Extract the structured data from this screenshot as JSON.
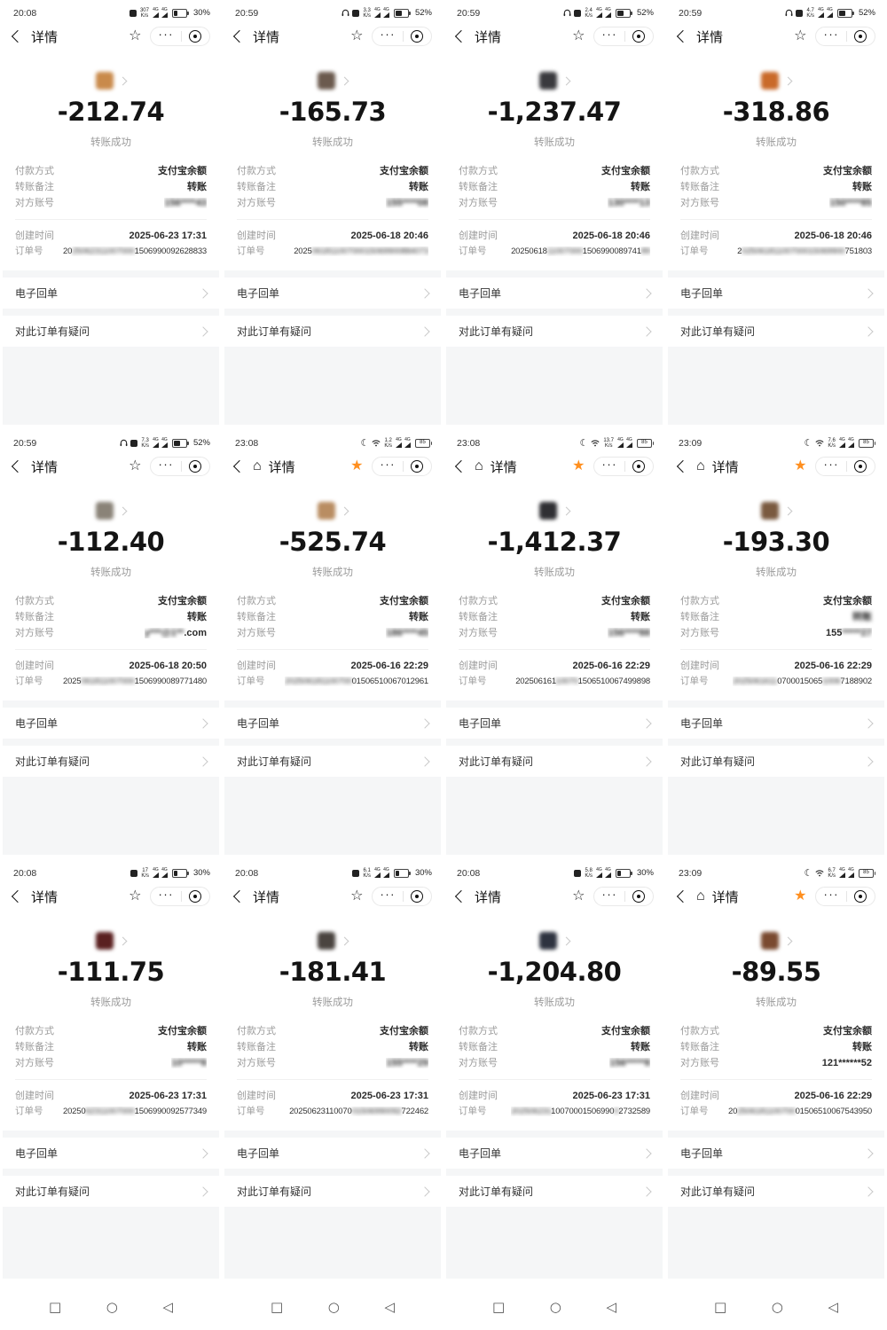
{
  "ui": {
    "nav_title": "详情",
    "status_success": "转账成功",
    "labels": {
      "payment": "付款方式",
      "note": "转账备注",
      "account": "对方账号",
      "created": "创建时间",
      "order": "订单号"
    },
    "values": {
      "payment": "支付宝余额",
      "note": "转账"
    },
    "receipt_label": "电子回单",
    "question_label": "对此订单有疑问",
    "speed_unit": "K/s",
    "signal_tag": "4G",
    "colors": {
      "star_filled": "#ff8f1f",
      "section_gray": "#f5f6f7"
    }
  },
  "cells": [
    {
      "time": "20:08",
      "speed": "307",
      "battery": "30%",
      "battery_pct": 30,
      "battery_boxed": false,
      "moon": false,
      "headphone": false,
      "mute": true,
      "wifi": false,
      "star_filled": false,
      "home": false,
      "android_nav": false,
      "avatar_color": "#c98a4b",
      "amount": "-212.74",
      "created": "2025-06-23 17:31",
      "note_blur": false,
      "account_parts": [
        [
          "156****43",
          1
        ]
      ],
      "order_parts": [
        [
          "20",
          0
        ],
        [
          "25062311007000",
          1
        ],
        [
          "1506990092628833",
          0
        ]
      ]
    },
    {
      "time": "20:59",
      "speed": "3.3",
      "battery": "52%",
      "battery_pct": 52,
      "battery_boxed": false,
      "moon": false,
      "headphone": true,
      "mute": true,
      "wifi": false,
      "star_filled": false,
      "home": false,
      "android_nav": false,
      "avatar_color": "#6b5a4e",
      "amount": "-165.73",
      "created": "2025-06-18 20:46",
      "note_blur": false,
      "account_parts": [
        [
          "155****08",
          1
        ]
      ],
      "order_parts": [
        [
          "2025",
          0
        ],
        [
          "06181100700015069900884073",
          1
        ]
      ]
    },
    {
      "time": "20:59",
      "speed": "2.4",
      "battery": "52%",
      "battery_pct": 52,
      "battery_boxed": false,
      "moon": false,
      "headphone": true,
      "mute": true,
      "wifi": false,
      "star_filled": false,
      "home": false,
      "android_nav": false,
      "avatar_color": "#3a3a3e",
      "amount": "-1,237.47",
      "created": "2025-06-18 20:46",
      "note_blur": false,
      "account_parts": [
        [
          "130****13",
          1
        ]
      ],
      "order_parts": [
        [
          "20250618",
          0
        ],
        [
          "11007000",
          1
        ],
        [
          "1506990089741",
          0
        ],
        [
          "89",
          1
        ]
      ]
    },
    {
      "time": "20:59",
      "speed": "4.7",
      "battery": "52%",
      "battery_pct": 52,
      "battery_boxed": false,
      "moon": false,
      "headphone": true,
      "mute": true,
      "wifi": false,
      "star_filled": false,
      "home": false,
      "android_nav": false,
      "avatar_color": "#c96a2a",
      "amount": "-318.86",
      "created": "2025-06-18 20:46",
      "note_blur": false,
      "account_parts": [
        [
          "150****85",
          1
        ]
      ],
      "order_parts": [
        [
          "2",
          0
        ],
        [
          "02506181100700015069900",
          1
        ],
        [
          "751803",
          0
        ]
      ]
    },
    {
      "time": "20:59",
      "speed": "7.3",
      "battery": "52%",
      "battery_pct": 52,
      "battery_boxed": false,
      "moon": false,
      "headphone": true,
      "mute": true,
      "wifi": false,
      "star_filled": false,
      "home": false,
      "android_nav": false,
      "avatar_color": "#8a8378",
      "amount": "-112.40",
      "created": "2025-06-18 20:50",
      "note_blur": false,
      "account_parts": [
        [
          "y***@1**",
          1
        ],
        [
          ".com",
          0
        ]
      ],
      "order_parts": [
        [
          "2025",
          0
        ],
        [
          "061811007000",
          1
        ],
        [
          "1506990089771480",
          0
        ]
      ]
    },
    {
      "time": "23:08",
      "speed": "1.2",
      "battery": "85",
      "battery_pct": 85,
      "battery_boxed": true,
      "moon": true,
      "headphone": false,
      "mute": false,
      "wifi": true,
      "star_filled": true,
      "home": true,
      "android_nav": false,
      "avatar_color": "#b98d62",
      "amount": "-525.74",
      "created": "2025-06-16 22:29",
      "note_blur": false,
      "account_parts": [
        [
          "186****45",
          1
        ]
      ],
      "order_parts": [
        [
          "202506181100700",
          1
        ],
        [
          "01506510067012961",
          0
        ]
      ]
    },
    {
      "time": "23:08",
      "speed": "13.7",
      "battery": "85",
      "battery_pct": 85,
      "battery_boxed": true,
      "moon": true,
      "headphone": false,
      "mute": false,
      "wifi": true,
      "star_filled": true,
      "home": true,
      "android_nav": false,
      "avatar_color": "#2f2f33",
      "amount": "-1,412.37",
      "created": "2025-06-16 22:29",
      "note_blur": false,
      "account_parts": [
        [
          "156****88",
          1
        ]
      ],
      "order_parts": [
        [
          "202506161",
          0
        ],
        [
          "10070",
          1
        ],
        [
          "1506510067499898",
          0
        ]
      ]
    },
    {
      "time": "23:09",
      "speed": "7.6",
      "battery": "85",
      "battery_pct": 85,
      "battery_boxed": true,
      "moon": true,
      "headphone": false,
      "mute": false,
      "wifi": true,
      "star_filled": true,
      "home": true,
      "android_nav": false,
      "avatar_color": "#7a5a40",
      "amount": "-193.30",
      "created": "2025-06-16 22:29",
      "note_blur": true,
      "account_parts": [
        [
          "155",
          0
        ],
        [
          "*****27",
          1
        ]
      ],
      "order_parts": [
        [
          "2025061611",
          1
        ],
        [
          "0700015065",
          0
        ],
        [
          "1006",
          1
        ],
        [
          "7188902",
          0
        ]
      ]
    },
    {
      "time": "20:08",
      "speed": "17",
      "battery": "30%",
      "battery_pct": 30,
      "battery_boxed": false,
      "moon": false,
      "headphone": false,
      "mute": true,
      "wifi": false,
      "star_filled": false,
      "home": false,
      "android_nav": true,
      "avatar_color": "#5a2020",
      "amount": "-111.75",
      "created": "2025-06-23 17:31",
      "note_blur": false,
      "account_parts": [
        [
          "10*****8",
          1
        ]
      ],
      "order_parts": [
        [
          "20250",
          0
        ],
        [
          "62311007000",
          1
        ],
        [
          "1506990092577349",
          0
        ]
      ]
    },
    {
      "time": "20:08",
      "speed": "6.1",
      "battery": "30%",
      "battery_pct": 30,
      "battery_boxed": false,
      "moon": false,
      "headphone": false,
      "mute": true,
      "wifi": false,
      "star_filled": false,
      "home": false,
      "android_nav": true,
      "avatar_color": "#4a4440",
      "amount": "-181.41",
      "created": "2025-06-23 17:31",
      "note_blur": false,
      "account_parts": [
        [
          "155****29",
          1
        ]
      ],
      "order_parts": [
        [
          "20250623110070",
          0
        ],
        [
          "01506990092",
          1
        ],
        [
          "722462",
          0
        ]
      ]
    },
    {
      "time": "20:08",
      "speed": "5.8",
      "battery": "30%",
      "battery_pct": 30,
      "battery_boxed": false,
      "moon": false,
      "headphone": false,
      "mute": true,
      "wifi": false,
      "star_filled": false,
      "home": false,
      "android_nav": true,
      "avatar_color": "#2e3340",
      "amount": "-1,204.80",
      "created": "2025-06-23 17:31",
      "note_blur": false,
      "account_parts": [
        [
          "156*****8",
          1
        ]
      ],
      "order_parts": [
        [
          "202506231",
          1
        ],
        [
          "10070001506990",
          0
        ],
        [
          "0",
          1
        ],
        [
          "2732589",
          0
        ]
      ]
    },
    {
      "time": "23:09",
      "speed": "6.7",
      "battery": "85",
      "battery_pct": 85,
      "battery_boxed": true,
      "moon": true,
      "headphone": false,
      "mute": false,
      "wifi": true,
      "star_filled": true,
      "home": true,
      "android_nav": true,
      "avatar_color": "#7a4a30",
      "amount": "-89.55",
      "created": "2025-06-16 22:29",
      "note_blur": false,
      "account_parts": [
        [
          "121******52",
          0
        ]
      ],
      "order_parts": [
        [
          "20",
          0
        ],
        [
          "2506181100700",
          1
        ],
        [
          "01506510067543950",
          0
        ]
      ]
    }
  ]
}
